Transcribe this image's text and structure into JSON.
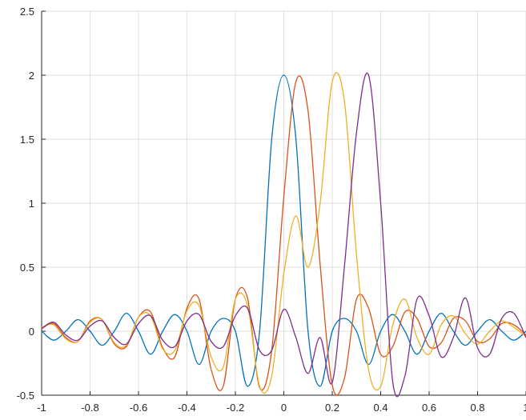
{
  "chart_data": {
    "type": "line",
    "xlim": [
      -1,
      1
    ],
    "ylim": [
      -0.5,
      2.5
    ],
    "grid": true,
    "legend": "none",
    "x_ticks": [
      "-1",
      "-0.8",
      "-0.6",
      "-0.4",
      "-0.2",
      "0",
      "0.2",
      "0.4",
      "0.6",
      "0.8",
      "1"
    ],
    "y_ticks": [
      "-0.5",
      "0",
      "0.5",
      "1",
      "1.5",
      "2",
      "2.5"
    ],
    "x": [
      -1.0,
      -0.95,
      -0.9,
      -0.85,
      -0.8,
      -0.75,
      -0.7,
      -0.65,
      -0.6,
      -0.55,
      -0.5,
      -0.45,
      -0.4,
      -0.35,
      -0.3,
      -0.25,
      -0.2,
      -0.15,
      -0.1,
      -0.05,
      0.0,
      0.05,
      0.1,
      0.15,
      0.2,
      0.25,
      0.3,
      0.35,
      0.4,
      0.45,
      0.5,
      0.55,
      0.6,
      0.65,
      0.7,
      0.75,
      0.8,
      0.85,
      0.9,
      0.95,
      1.0
    ],
    "series": [
      {
        "color": "#0072BD",
        "values": [
          0.0,
          -0.07,
          0.0,
          0.09,
          0.0,
          -0.11,
          0.0,
          0.14,
          0.0,
          -0.18,
          0.0,
          0.13,
          0.0,
          -0.26,
          0.0,
          0.1,
          0.0,
          -0.43,
          0.0,
          1.5,
          2.0,
          1.5,
          0.0,
          -0.43,
          0.0,
          0.1,
          0.0,
          -0.26,
          0.0,
          0.13,
          0.0,
          -0.18,
          0.0,
          0.14,
          0.0,
          -0.11,
          0.0,
          0.09,
          0.0,
          -0.07,
          0.0
        ]
      },
      {
        "color": "#D95319",
        "values": [
          0.02,
          0.06,
          -0.05,
          -0.08,
          0.08,
          0.09,
          -0.1,
          -0.12,
          0.11,
          0.15,
          -0.13,
          -0.2,
          0.18,
          0.25,
          -0.3,
          -0.43,
          0.25,
          0.26,
          -0.44,
          -0.15,
          1.05,
          1.95,
          1.72,
          0.52,
          -0.42,
          -0.37,
          0.25,
          0.18,
          -0.18,
          -0.12,
          0.15,
          0.1,
          -0.12,
          -0.09,
          0.1,
          0.08,
          -0.08,
          -0.06,
          0.06,
          0.05,
          -0.03
        ]
      },
      {
        "color": "#EDB120",
        "values": [
          0.03,
          0.05,
          -0.06,
          -0.08,
          0.07,
          0.09,
          -0.09,
          -0.11,
          0.11,
          0.12,
          -0.14,
          -0.15,
          0.16,
          0.2,
          -0.2,
          -0.28,
          0.25,
          0.2,
          -0.43,
          -0.35,
          0.45,
          0.9,
          0.5,
          1.0,
          1.95,
          1.8,
          0.6,
          -0.3,
          -0.43,
          0.05,
          0.25,
          -0.05,
          -0.18,
          0.05,
          0.12,
          -0.02,
          -0.1,
          0.0,
          0.08,
          0.03,
          -0.04
        ]
      },
      {
        "color": "#7E2F8E",
        "values": [
          0.02,
          0.07,
          -0.03,
          -0.07,
          0.04,
          0.08,
          -0.05,
          -0.1,
          0.06,
          0.12,
          -0.07,
          -0.12,
          0.08,
          0.13,
          -0.08,
          -0.12,
          0.12,
          0.18,
          -0.15,
          -0.15,
          0.17,
          -0.05,
          -0.33,
          -0.05,
          -0.4,
          0.5,
          1.55,
          2.0,
          1.0,
          -0.4,
          -0.35,
          0.25,
          0.12,
          -0.2,
          -0.05,
          0.26,
          -0.13,
          -0.18,
          0.1,
          0.14,
          -0.05
        ]
      }
    ]
  }
}
